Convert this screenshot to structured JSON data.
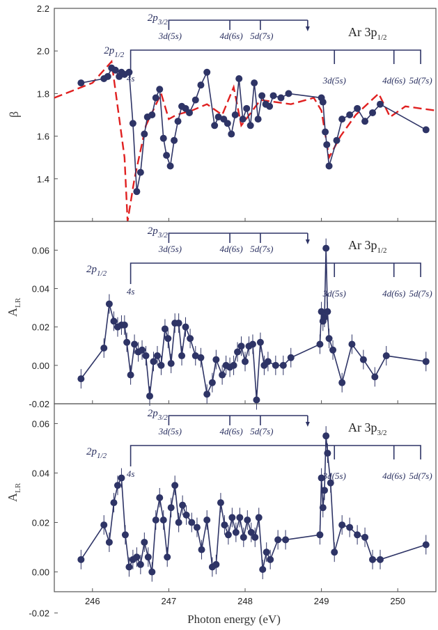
{
  "xlabel": "Photon energy (eV)",
  "xticks": [
    "246",
    "247",
    "248",
    "249",
    "250"
  ],
  "colors": {
    "series": "#2e3466",
    "theory": "#e02020",
    "frame": "#555555"
  },
  "panels": [
    {
      "title_main": "Ar 3p",
      "title_sub": "1/2",
      "ylabel_main": "β",
      "ylabel_sub": "",
      "yticks": [
        "2.2",
        "2.0",
        "1.8",
        "1.6",
        "1.4"
      ],
      "yvalues": [
        2.2,
        2.0,
        1.8,
        1.6,
        1.4
      ]
    },
    {
      "title_main": "Ar 3p",
      "title_sub": "1/2",
      "ylabel_main": "A",
      "ylabel_sub": "LR",
      "yticks": [
        "0.06",
        "0.04",
        "0.02",
        "0.00",
        "-0.02"
      ],
      "yvalues": [
        0.06,
        0.04,
        0.02,
        0.0,
        -0.02
      ]
    },
    {
      "title_main": "Ar 3p",
      "title_sub": "3/2",
      "ylabel_main": "A",
      "ylabel_sub": "LR",
      "yticks": [
        "-0.02",
        "0.06",
        "0.04",
        "0.02",
        "0.00"
      ],
      "yvalues": [
        null,
        0.06,
        0.04,
        0.02,
        0.0
      ]
    }
  ],
  "resonances": {
    "p32": {
      "main": "2p",
      "sub": "3/2",
      "labels": [
        "3d(5s)",
        "4d(6s)",
        "5d(7s)"
      ]
    },
    "p12": {
      "main": "2p",
      "sub": "1/2",
      "labels": [
        "4s",
        "3d(5s)",
        "4d(6s)",
        "5d(7s)"
      ]
    }
  },
  "chart_data": [
    {
      "type": "scatter",
      "title": "Ar 3p 1/2",
      "ylabel": "β",
      "xlabel": "Photon energy (eV)",
      "xlim": [
        245.5,
        250.5
      ],
      "ylim": [
        1.2,
        2.2
      ],
      "series": [
        {
          "x": [
            245.85,
            246.15,
            246.2,
            246.25,
            246.3,
            246.35,
            246.38,
            246.42,
            246.48,
            246.53,
            246.58,
            246.63,
            246.68,
            246.72,
            246.78,
            246.83,
            246.88,
            246.93,
            246.97,
            247.02,
            247.07,
            247.12,
            247.17,
            247.22,
            247.27,
            247.35,
            247.42,
            247.5,
            247.6,
            247.65,
            247.72,
            247.77,
            247.82,
            247.87,
            247.92,
            247.97,
            248.02,
            248.07,
            248.12,
            248.17,
            248.22,
            248.27,
            248.32,
            248.37,
            248.47,
            248.57,
            249.0,
            249.02,
            249.05,
            249.07,
            249.1,
            249.2,
            249.27,
            249.37,
            249.47,
            249.57,
            249.67,
            249.77,
            250.37
          ],
          "y": [
            1.85,
            1.87,
            1.88,
            1.92,
            1.91,
            1.88,
            1.9,
            1.89,
            1.9,
            1.66,
            1.34,
            1.43,
            1.61,
            1.69,
            1.7,
            1.78,
            1.82,
            1.59,
            1.51,
            1.46,
            1.58,
            1.67,
            1.74,
            1.73,
            1.71,
            1.77,
            1.84,
            1.9,
            1.65,
            1.69,
            1.68,
            1.66,
            1.61,
            1.7,
            1.87,
            1.68,
            1.73,
            1.65,
            1.85,
            1.68,
            1.79,
            1.75,
            1.74,
            1.79,
            1.78,
            1.8,
            1.78,
            1.76,
            1.62,
            1.56,
            1.46,
            1.58,
            1.68,
            1.7,
            1.73,
            1.67,
            1.71,
            1.75,
            1.63
          ]
        },
        {
          "x": [
            245.5,
            246.0,
            246.25,
            246.42,
            246.46,
            246.55,
            246.7,
            246.9,
            247.0,
            247.1,
            247.3,
            247.5,
            247.7,
            247.85,
            247.95,
            248.2,
            248.6,
            248.9,
            249.0,
            249.1,
            249.25,
            249.45,
            249.75,
            249.9,
            250.1,
            250.5
          ],
          "y": [
            1.78,
            1.85,
            1.95,
            1.5,
            1.2,
            1.4,
            1.65,
            1.8,
            1.68,
            1.7,
            1.72,
            1.75,
            1.7,
            1.83,
            1.65,
            1.77,
            1.75,
            1.78,
            1.72,
            1.5,
            1.6,
            1.7,
            1.8,
            1.69,
            1.74,
            1.72
          ]
        }
      ]
    },
    {
      "type": "scatter",
      "title": "Ar 3p 1/2",
      "ylabel": "A LR",
      "xlabel": "Photon energy (eV)",
      "xlim": [
        245.5,
        250.5
      ],
      "ylim": [
        -0.02,
        0.075
      ],
      "series": [
        {
          "x": [
            245.85,
            246.15,
            246.22,
            246.28,
            246.33,
            246.38,
            246.42,
            246.45,
            246.5,
            246.55,
            246.6,
            246.65,
            246.7,
            246.75,
            246.8,
            246.85,
            246.9,
            246.95,
            246.99,
            247.03,
            247.08,
            247.13,
            247.17,
            247.22,
            247.28,
            247.35,
            247.42,
            247.5,
            247.57,
            247.62,
            247.7,
            247.75,
            247.8,
            247.85,
            247.9,
            247.95,
            248.0,
            248.05,
            248.1,
            248.15,
            248.2,
            248.25,
            248.3,
            248.4,
            248.5,
            248.6,
            248.98,
            249.0,
            249.02,
            249.04,
            249.06,
            249.08,
            249.1,
            249.15,
            249.27,
            249.4,
            249.55,
            249.7,
            249.85,
            250.37
          ],
          "y": [
            -0.007,
            0.009,
            0.032,
            0.023,
            0.02,
            0.021,
            0.021,
            0.012,
            -0.005,
            0.011,
            0.007,
            0.008,
            0.005,
            -0.016,
            0.002,
            0.005,
            0.0,
            0.019,
            0.014,
            0.001,
            0.022,
            0.022,
            0.005,
            0.02,
            0.014,
            0.005,
            0.004,
            -0.015,
            -0.009,
            0.003,
            -0.005,
            0.0,
            -0.001,
            0.0,
            0.007,
            0.01,
            0.002,
            0.01,
            0.011,
            -0.018,
            0.012,
            0.0,
            0.002,
            0.0,
            0.0,
            0.004,
            0.011,
            0.028,
            0.023,
            0.025,
            0.061,
            0.028,
            0.014,
            0.008,
            -0.009,
            0.011,
            0.003,
            -0.006,
            0.005,
            0.002
          ]
        }
      ]
    },
    {
      "type": "scatter",
      "title": "Ar 3p 3/2",
      "ylabel": "A LR",
      "xlabel": "Photon energy (eV)",
      "xlim": [
        245.5,
        250.5
      ],
      "ylim": [
        -0.008,
        0.068
      ],
      "series": [
        {
          "x": [
            245.85,
            246.15,
            246.22,
            246.28,
            246.33,
            246.38,
            246.43,
            246.48,
            246.53,
            246.58,
            246.63,
            246.68,
            246.73,
            246.78,
            246.83,
            246.88,
            246.93,
            246.98,
            247.03,
            247.08,
            247.13,
            247.18,
            247.23,
            247.3,
            247.37,
            247.43,
            247.5,
            247.57,
            247.62,
            247.68,
            247.73,
            247.78,
            247.83,
            247.88,
            247.93,
            247.98,
            248.03,
            248.08,
            248.13,
            248.18,
            248.23,
            248.28,
            248.33,
            248.43,
            248.53,
            248.98,
            249.0,
            249.02,
            249.04,
            249.06,
            249.08,
            249.12,
            249.17,
            249.27,
            249.37,
            249.47,
            249.57,
            249.67,
            249.77,
            250.37
          ],
          "y": [
            0.005,
            0.019,
            0.012,
            0.028,
            0.035,
            0.038,
            0.015,
            0.002,
            0.005,
            0.006,
            0.003,
            0.012,
            0.006,
            0.0,
            0.021,
            0.03,
            0.021,
            0.006,
            0.026,
            0.035,
            0.02,
            0.027,
            0.023,
            0.02,
            0.018,
            0.009,
            0.021,
            0.002,
            0.003,
            0.028,
            0.019,
            0.015,
            0.022,
            0.016,
            0.022,
            0.014,
            0.021,
            0.016,
            0.014,
            0.022,
            0.001,
            0.008,
            0.005,
            0.013,
            0.013,
            0.015,
            0.038,
            0.026,
            0.033,
            0.055,
            0.048,
            0.036,
            0.008,
            0.019,
            0.018,
            0.015,
            0.014,
            0.005,
            0.005,
            0.011
          ]
        }
      ]
    }
  ]
}
